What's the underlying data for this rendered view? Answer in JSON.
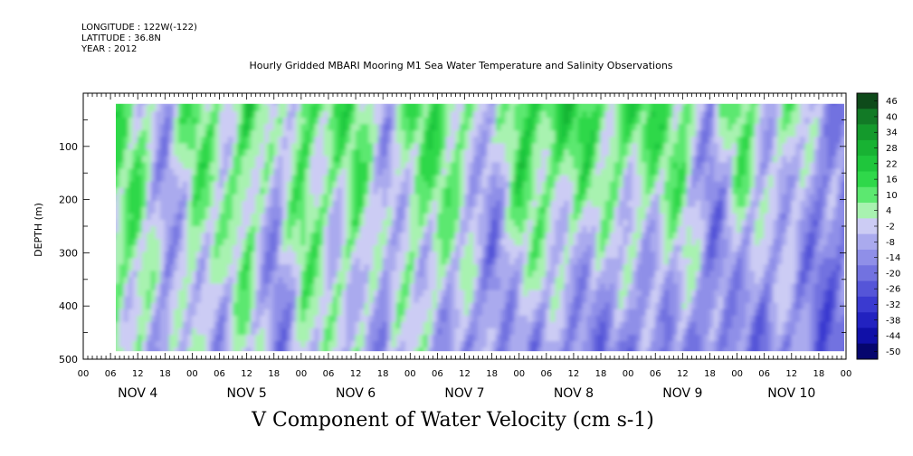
{
  "header": {
    "longitude": "LONGITUDE : 122W(-122)",
    "latitude": "LATITUDE : 36.8N",
    "year": "YEAR : 2012"
  },
  "title": "Hourly Gridded MBARI Mooring M1 Sea Water Temperature and Salinity Observations",
  "xlabel": "V Component of Water Velocity (cm s-1)",
  "ylabel": "DEPTH (m)",
  "chart_data": {
    "type": "heatmap",
    "title": "Hourly Gridded MBARI Mooring M1 Sea Water Temperature and Salinity Observations",
    "xlabel": "V Component of Water Velocity (cm s-1)",
    "ylabel": "DEPTH (m)",
    "y_axis": {
      "range": [
        0,
        500
      ],
      "inverted": true,
      "ticks": [
        "100",
        "200",
        "300",
        "400",
        "500"
      ],
      "data_extent": [
        20,
        485
      ]
    },
    "x_axis": {
      "range_hours": [
        0,
        168
      ],
      "hour_ticks": [
        "00",
        "06",
        "12",
        "18",
        "00",
        "06",
        "12",
        "18",
        "00",
        "06",
        "12",
        "18",
        "00",
        "06",
        "12",
        "18",
        "00",
        "06",
        "12",
        "18",
        "00",
        "06",
        "12",
        "18",
        "00",
        "06",
        "12",
        "18",
        "00"
      ],
      "day_labels": [
        "NOV 4",
        "NOV 5",
        "NOV 6",
        "NOV 7",
        "NOV 8",
        "NOV 9",
        "NOV 10"
      ],
      "data_start_hour": 7
    },
    "colorbar": {
      "labels": [
        "46",
        "40",
        "34",
        "28",
        "22",
        "16",
        "10",
        "4",
        "-2",
        "-8",
        "-14",
        "-20",
        "-26",
        "-32",
        "-38",
        "-44",
        "-50"
      ],
      "levels": [
        46,
        40,
        34,
        28,
        22,
        16,
        10,
        4,
        -2,
        -8,
        -14,
        -20,
        -26,
        -32,
        -38,
        -44,
        -50
      ],
      "colors": [
        "#0e4a1a",
        "#127a26",
        "#149a2c",
        "#18b233",
        "#1fc63c",
        "#2fd84a",
        "#5ce870",
        "#a8f2b0",
        "#ccccf4",
        "#aaaaee",
        "#8f8fe8",
        "#7272e0",
        "#5555d8",
        "#3a3ad0",
        "#2222c0",
        "#1010a8",
        "#06066e"
      ]
    },
    "profiles": [
      {
        "day": "NOV 4",
        "hour": 7,
        "v_surface": 12,
        "v_deep": 8
      },
      {
        "day": "NOV 4",
        "hour": 12,
        "v_surface": 10,
        "v_deep": 6
      },
      {
        "day": "NOV 4",
        "hour": 18,
        "v_surface": -6,
        "v_deep": -10
      },
      {
        "day": "NOV 5",
        "hour": 0,
        "v_surface": 14,
        "v_deep": 4
      },
      {
        "day": "NOV 5",
        "hour": 6,
        "v_surface": 6,
        "v_deep": -4
      },
      {
        "day": "NOV 5",
        "hour": 12,
        "v_surface": 18,
        "v_deep": 4
      },
      {
        "day": "NOV 5",
        "hour": 18,
        "v_surface": -4,
        "v_deep": -14
      },
      {
        "day": "NOV 6",
        "hour": 0,
        "v_surface": 16,
        "v_deep": 6
      },
      {
        "day": "NOV 6",
        "hour": 6,
        "v_surface": 10,
        "v_deep": -2
      },
      {
        "day": "NOV 6",
        "hour": 12,
        "v_surface": 14,
        "v_deep": 2
      },
      {
        "day": "NOV 6",
        "hour": 18,
        "v_surface": -2,
        "v_deep": -10
      },
      {
        "day": "NOV 7",
        "hour": 0,
        "v_surface": 12,
        "v_deep": 2
      },
      {
        "day": "NOV 7",
        "hour": 6,
        "v_surface": 16,
        "v_deep": -4
      },
      {
        "day": "NOV 7",
        "hour": 12,
        "v_surface": 10,
        "v_deep": -8
      },
      {
        "day": "NOV 7",
        "hour": 18,
        "v_surface": -8,
        "v_deep": -12
      },
      {
        "day": "NOV 8",
        "hour": 0,
        "v_surface": 22,
        "v_deep": -6
      },
      {
        "day": "NOV 8",
        "hour": 6,
        "v_surface": 18,
        "v_deep": -10
      },
      {
        "day": "NOV 8",
        "hour": 12,
        "v_surface": 20,
        "v_deep": -14
      },
      {
        "day": "NOV 8",
        "hour": 18,
        "v_surface": 12,
        "v_deep": -12
      },
      {
        "day": "NOV 9",
        "hour": 0,
        "v_surface": 18,
        "v_deep": -16
      },
      {
        "day": "NOV 9",
        "hour": 6,
        "v_surface": 14,
        "v_deep": -10
      },
      {
        "day": "NOV 9",
        "hour": 12,
        "v_surface": 16,
        "v_deep": -8
      },
      {
        "day": "NOV 9",
        "hour": 18,
        "v_surface": -10,
        "v_deep": -16
      },
      {
        "day": "NOV 10",
        "hour": 0,
        "v_surface": 16,
        "v_deep": -12
      },
      {
        "day": "NOV 10",
        "hour": 6,
        "v_surface": 2,
        "v_deep": -14
      },
      {
        "day": "NOV 10",
        "hour": 12,
        "v_surface": 8,
        "v_deep": -10
      },
      {
        "day": "NOV 10",
        "hour": 18,
        "v_surface": -10,
        "v_deep": -18
      }
    ]
  }
}
